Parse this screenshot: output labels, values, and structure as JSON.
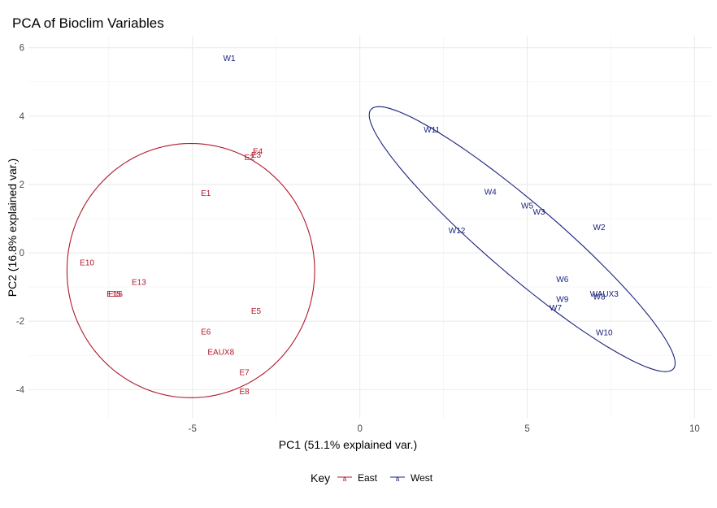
{
  "chart_data": {
    "type": "scatter",
    "title": "PCA of Bioclim Variables",
    "xlabel": "PC1 (51.1% explained var.)",
    "ylabel": "PC2 (16.8% explained var.)",
    "xlim": [
      -9.9,
      10.5
    ],
    "ylim": [
      -4.85,
      6.35
    ],
    "x_ticks": [
      -5,
      0,
      5,
      10
    ],
    "y_ticks": [
      -4,
      -2,
      0,
      2,
      4,
      6
    ],
    "x_tick_labels": [
      "-5",
      "0",
      "5",
      "10"
    ],
    "y_tick_labels": [
      "-4",
      "-2",
      "0",
      "2",
      "4",
      "6"
    ],
    "grid": true,
    "legend": {
      "title": "Key",
      "placement": "bottom",
      "key_glyph": "a",
      "entries": [
        "East",
        "West"
      ]
    },
    "series": [
      {
        "name": "East",
        "color": "#B2182B",
        "points": [
          {
            "label": "E1",
            "x": -4.6,
            "y": 1.75
          },
          {
            "label": "E2",
            "x": -3.3,
            "y": 2.8
          },
          {
            "label": "E3",
            "x": -3.1,
            "y": 2.87
          },
          {
            "label": "E4",
            "x": -3.05,
            "y": 2.97
          },
          {
            "label": "E5",
            "x": -3.1,
            "y": -1.7
          },
          {
            "label": "E6",
            "x": -4.6,
            "y": -2.3
          },
          {
            "label": "E7",
            "x": -3.45,
            "y": -3.5
          },
          {
            "label": "E8",
            "x": -3.45,
            "y": -4.05
          },
          {
            "label": "EAUX8",
            "x": -4.15,
            "y": -2.9
          },
          {
            "label": "E10",
            "x": -8.15,
            "y": -0.28
          },
          {
            "label": "E13",
            "x": -6.6,
            "y": -0.85
          },
          {
            "label": "E15",
            "x": -7.35,
            "y": -1.2
          },
          {
            "label": "E16",
            "x": -7.3,
            "y": -1.2
          }
        ],
        "ellipse": {
          "cx": -5.05,
          "cy": -0.52,
          "rx": 3.7,
          "ry": 3.72,
          "angle": 0.0
        }
      },
      {
        "name": "West",
        "color": "#1A237E",
        "points": [
          {
            "label": "W1",
            "x": -3.9,
            "y": 5.7
          },
          {
            "label": "W2",
            "x": 7.15,
            "y": 0.75
          },
          {
            "label": "W3",
            "x": 5.35,
            "y": 1.2
          },
          {
            "label": "W4",
            "x": 3.9,
            "y": 1.78
          },
          {
            "label": "W5",
            "x": 5.0,
            "y": 1.38
          },
          {
            "label": "W6",
            "x": 6.05,
            "y": -0.77
          },
          {
            "label": "W7",
            "x": 5.85,
            "y": -1.6
          },
          {
            "label": "W8",
            "x": 7.15,
            "y": -1.28
          },
          {
            "label": "W9",
            "x": 6.05,
            "y": -1.35
          },
          {
            "label": "W10",
            "x": 7.3,
            "y": -2.33
          },
          {
            "label": "W11",
            "x": 2.15,
            "y": 3.6
          },
          {
            "label": "W12",
            "x": 2.9,
            "y": 0.65
          },
          {
            "label": "WAUX3",
            "x": 7.3,
            "y": -1.2
          }
        ],
        "ellipse": {
          "cx": 4.85,
          "cy": 0.4,
          "rx": 5.9,
          "ry": 1.05,
          "angle": -40.0
        }
      }
    ]
  }
}
